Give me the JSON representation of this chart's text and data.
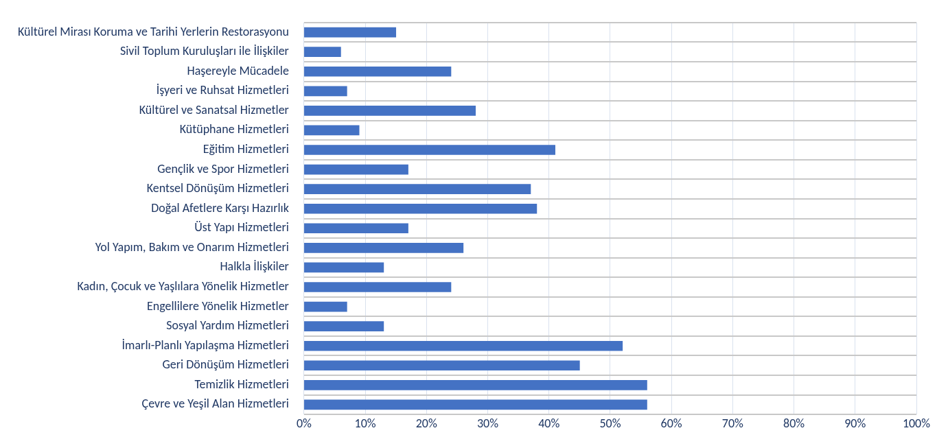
{
  "chart_data": {
    "type": "bar",
    "orientation": "horizontal",
    "categories": [
      "Kültürel Mirası Koruma ve Tarihi Yerlerin Restorasyonu",
      "Sivil Toplum Kuruluşları ile İlişkiler",
      "Haşereyle Mücadele",
      "İşyeri ve Ruhsat Hizmetleri",
      "Kültürel ve Sanatsal Hizmetler",
      "Kütüphane Hizmetleri",
      "Eğitim Hizmetleri",
      "Gençlik ve Spor Hizmetleri",
      "Kentsel Dönüşüm Hizmetleri",
      "Doğal Afetlere Karşı Hazırlık",
      "Üst Yapı Hizmetleri",
      "Yol Yapım, Bakım ve Onarım Hizmetleri",
      "Halkla İlişkiler",
      "Kadın, Çocuk ve Yaşlılara Yönelik Hizmetler",
      "Engellilere Yönelik Hizmetler",
      "Sosyal Yardım Hizmetleri",
      "İmarlı-Planlı Yapılaşma Hizmetleri",
      "Geri Dönüşüm Hizmetleri",
      "Temizlik Hizmetleri",
      "Çevre ve Yeşil Alan Hizmetleri"
    ],
    "values": [
      15,
      6,
      24,
      7,
      28,
      9,
      41,
      17,
      37,
      38,
      17,
      26,
      13,
      24,
      7,
      13,
      52,
      45,
      56,
      56
    ],
    "color": "#4472c4",
    "xlim": [
      0,
      100
    ],
    "xticks": [
      {
        "value": 0,
        "label": "0%"
      },
      {
        "value": 10,
        "label": "10%"
      },
      {
        "value": 20,
        "label": "20%"
      },
      {
        "value": 30,
        "label": "30%"
      },
      {
        "value": 40,
        "label": "40%"
      },
      {
        "value": 50,
        "label": "50%"
      },
      {
        "value": 60,
        "label": "60%"
      },
      {
        "value": 70,
        "label": "70%"
      },
      {
        "value": 80,
        "label": "80%"
      },
      {
        "value": 90,
        "label": "90%"
      },
      {
        "value": 100,
        "label": "100%"
      }
    ],
    "grid": true
  }
}
